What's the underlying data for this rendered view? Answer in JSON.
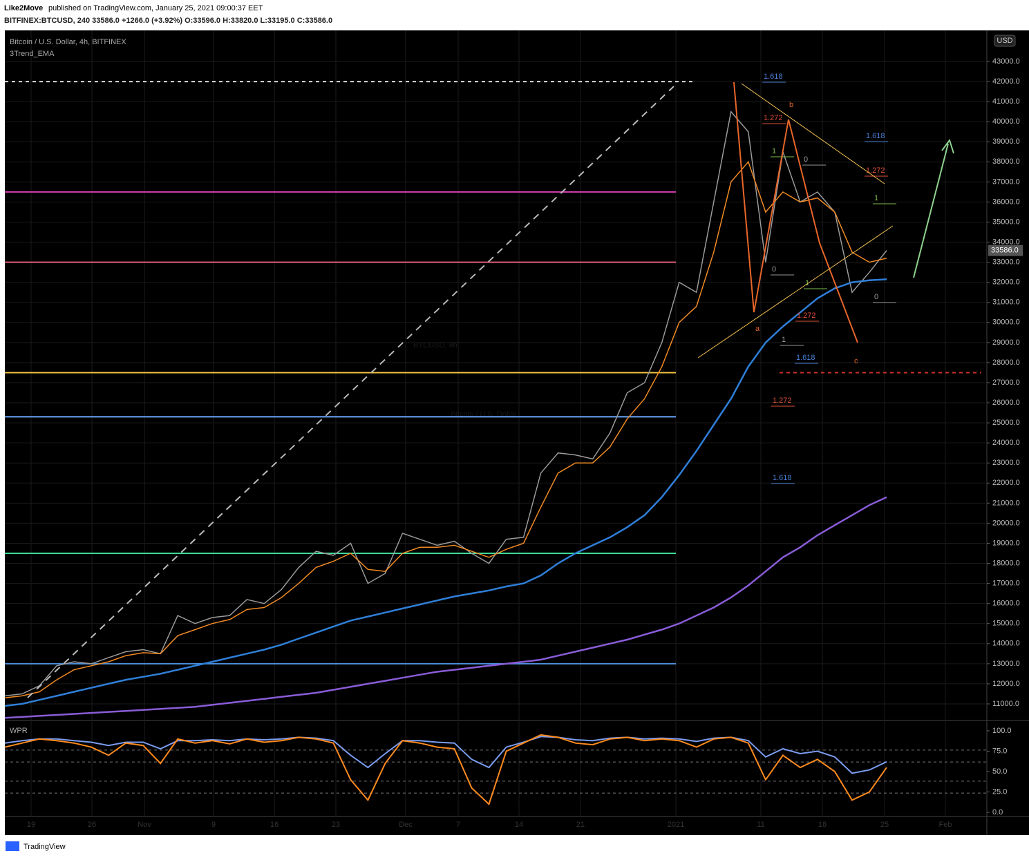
{
  "header": {
    "publisher": "Like2Move",
    "published": "published on TradingView.com, January 25, 2021 09:00:37 EET",
    "symbol_line": "BITFINEX:BTCUSD, 240 33586.0 +1266.0 (+3.92%) O:33596.0 H:33820.0 L:33195.0 C:33586.0"
  },
  "footer": {
    "brand": "TradingView"
  },
  "chart_data": {
    "type": "line",
    "title": "Bitcoin / U.S. Dollar, 4h, BITFINEX",
    "subtitle": "3Trend_EMA",
    "watermark": "BTCUSD, 4h",
    "watermark_sub": "Bitcoin / U.S. Dollar",
    "currency": "USD",
    "xtick_labels": [
      "19",
      "26",
      "Nov",
      "9",
      "16",
      "23",
      "Dec",
      "7",
      "14",
      "21",
      "2021",
      "11",
      "18",
      "25",
      "Feb"
    ],
    "ylim": [
      10208,
      44549
    ],
    "yticks": [
      {
        "value": 11000,
        "label": "11000.0"
      },
      {
        "value": 12000,
        "label": "12000.0"
      },
      {
        "value": 13000,
        "label": "13000.0"
      },
      {
        "value": 14000,
        "label": "14000.0"
      },
      {
        "value": 15000,
        "label": "15000.0"
      },
      {
        "value": 16000,
        "label": "16000.0"
      },
      {
        "value": 17000,
        "label": "17000.0"
      },
      {
        "value": 18000,
        "label": "18000.0"
      },
      {
        "value": 19000,
        "label": "19000.0"
      },
      {
        "value": 20000,
        "label": "20000.0"
      },
      {
        "value": 21000,
        "label": "21000.0"
      },
      {
        "value": 22000,
        "label": "22000.0"
      },
      {
        "value": 23000,
        "label": "23000.0"
      },
      {
        "value": 24000,
        "label": "24000.0"
      },
      {
        "value": 25000,
        "label": "25000.0"
      },
      {
        "value": 26000,
        "label": "26000.0"
      },
      {
        "value": 27000,
        "label": "27000.0"
      },
      {
        "value": 28000,
        "label": "28000.0"
      },
      {
        "value": 29000,
        "label": "29000.0"
      },
      {
        "value": 30000,
        "label": "30000.0"
      },
      {
        "value": 31000,
        "label": "31000.0"
      },
      {
        "value": 32000,
        "label": "32000.0"
      },
      {
        "value": 33000,
        "label": "33000.0"
      },
      {
        "value": 34000,
        "label": "34000.0"
      },
      {
        "value": 35000,
        "label": "35000.0"
      },
      {
        "value": 36000,
        "label": "36000.0"
      },
      {
        "value": 37000,
        "label": "37000.0"
      },
      {
        "value": 38000,
        "label": "38000.0"
      },
      {
        "value": 39000,
        "label": "39000.0"
      },
      {
        "value": 40000,
        "label": "40000.0"
      },
      {
        "value": 41000,
        "label": "41000.0"
      },
      {
        "value": 42000,
        "label": "42000.0"
      },
      {
        "value": 43000,
        "label": "43000.0"
      }
    ],
    "grid": true,
    "last_price": 33586,
    "last_price_label": "33586.0",
    "series": [
      {
        "color": "#9a9a9a",
        "values": [
          11400,
          11500,
          11900,
          12900,
          13100,
          13000,
          13300,
          13600,
          13700,
          13500,
          15400,
          15000,
          15300,
          15400,
          16200,
          16000,
          16700,
          17800,
          18600,
          18400,
          19000,
          17000,
          17500,
          19500,
          19200,
          18900,
          19100,
          18500,
          18000,
          19200,
          19300,
          22500,
          23500,
          23400,
          23200,
          24500,
          26500,
          27000,
          29000,
          32000,
          31500,
          36000,
          40500,
          39500,
          33000,
          38500,
          36000,
          36500,
          35500,
          31500,
          32500,
          33586
        ]
      },
      {
        "color": "#f08a24",
        "values": [
          11300,
          11400,
          11600,
          12200,
          12700,
          12900,
          13100,
          13400,
          13550,
          13500,
          14400,
          14700,
          15000,
          15200,
          15700,
          15800,
          16300,
          17000,
          17800,
          18100,
          18500,
          17700,
          17600,
          18500,
          18800,
          18800,
          18900,
          18600,
          18300,
          18700,
          19000,
          20800,
          22500,
          23000,
          23000,
          23800,
          25200,
          26200,
          27800,
          30000,
          30800,
          33500,
          37000,
          38000,
          35500,
          36500,
          36000,
          36200,
          35500,
          33500,
          33000,
          33200
        ]
      },
      {
        "color": "#2f7fd8",
        "values": [
          10900,
          11000,
          11200,
          11400,
          11600,
          11800,
          12000,
          12200,
          12350,
          12500,
          12700,
          12900,
          13100,
          13300,
          13500,
          13700,
          13950,
          14250,
          14550,
          14850,
          15150,
          15350,
          15550,
          15750,
          15950,
          16150,
          16350,
          16500,
          16650,
          16850,
          17000,
          17400,
          18000,
          18500,
          18900,
          19300,
          19800,
          20400,
          21300,
          22400,
          23600,
          24900,
          26200,
          27800,
          29000,
          29800,
          30500,
          31200,
          31700,
          32000,
          32100,
          32150
        ]
      },
      {
        "color": "#8a5cd8",
        "values": [
          10300,
          10350,
          10400,
          10450,
          10500,
          10550,
          10600,
          10650,
          10700,
          10750,
          10800,
          10850,
          10950,
          11050,
          11150,
          11250,
          11350,
          11450,
          11550,
          11700,
          11850,
          12000,
          12150,
          12300,
          12450,
          12600,
          12700,
          12800,
          12900,
          13000,
          13100,
          13200,
          13400,
          13600,
          13800,
          14000,
          14200,
          14450,
          14700,
          15000,
          15400,
          15800,
          16300,
          16900,
          17600,
          18300,
          18800,
          19400,
          19900,
          20400,
          20900,
          21300
        ]
      }
    ],
    "hlines": [
      {
        "value": 42000,
        "color": "#dddddd",
        "style": "dashed"
      },
      {
        "value": 36500,
        "color": "#d63fb0",
        "style": "solid"
      },
      {
        "value": 33000,
        "color": "#e0607a",
        "style": "solid"
      },
      {
        "value": 27500,
        "color": "#f5c542",
        "style": "solid"
      },
      {
        "value": 25300,
        "color": "#6aa8ff",
        "style": "solid"
      },
      {
        "value": 18500,
        "color": "#3ddc97",
        "style": "solid"
      },
      {
        "value": 13000,
        "color": "#4a8fdc",
        "style": "solid"
      },
      {
        "value": 27500,
        "color": "#d0302a",
        "style": "dashed"
      }
    ],
    "annotations": [
      {
        "text": "1.618",
        "color": "#4a7fd4"
      },
      {
        "text": "1.272",
        "color": "#e0503a"
      },
      {
        "text": "1",
        "color": "#7fbf50"
      },
      {
        "text": "0",
        "color": "#999999"
      },
      {
        "text": "0",
        "color": "#999999"
      },
      {
        "text": "1",
        "color": "#7fbf50"
      },
      {
        "text": "1.272",
        "color": "#e0503a"
      },
      {
        "text": "1",
        "color": "#999999"
      },
      {
        "text": "1.618",
        "color": "#4a7fd4"
      },
      {
        "text": "1.272",
        "color": "#e0503a"
      },
      {
        "text": "1.618",
        "color": "#4a7fd4"
      },
      {
        "text": "1.618",
        "color": "#4a7fd4"
      },
      {
        "text": "1.272",
        "color": "#e0503a"
      },
      {
        "text": "1",
        "color": "#7fbf50"
      },
      {
        "text": "0",
        "color": "#999999"
      },
      {
        "text": "a",
        "color": "#e8662a"
      },
      {
        "text": "b",
        "color": "#e8662a"
      },
      {
        "text": "c",
        "color": "#e8662a"
      }
    ],
    "wpr": {
      "title": "WPR",
      "ylim": [
        0,
        100
      ],
      "yticks": [
        {
          "value": 0,
          "label": "0.0"
        },
        {
          "value": 25,
          "label": "25.0"
        },
        {
          "value": 50,
          "label": "50.0"
        },
        {
          "value": 75,
          "label": "75.0"
        },
        {
          "value": 100,
          "label": "100.0"
        }
      ],
      "levels": [
        76.4,
        61.8,
        38.2,
        23.6
      ],
      "series": [
        {
          "color": "#7b9cf0",
          "values": [
            85,
            88,
            90,
            90,
            88,
            86,
            82,
            86,
            86,
            78,
            88,
            88,
            89,
            88,
            90,
            89,
            90,
            92,
            91,
            88,
            70,
            55,
            72,
            88,
            88,
            86,
            85,
            65,
            55,
            80,
            86,
            93,
            92,
            89,
            88,
            91,
            92,
            90,
            91,
            90,
            87,
            91,
            92,
            88,
            68,
            78,
            72,
            75,
            68,
            48,
            52,
            62
          ]
        },
        {
          "color": "#ff8a1e",
          "values": [
            80,
            85,
            90,
            88,
            85,
            80,
            70,
            85,
            82,
            60,
            90,
            85,
            88,
            84,
            90,
            86,
            88,
            92,
            90,
            85,
            40,
            15,
            60,
            88,
            85,
            80,
            78,
            30,
            10,
            75,
            85,
            95,
            92,
            85,
            83,
            90,
            92,
            88,
            90,
            88,
            80,
            90,
            92,
            85,
            40,
            70,
            55,
            65,
            50,
            15,
            25,
            55
          ]
        }
      ]
    }
  }
}
